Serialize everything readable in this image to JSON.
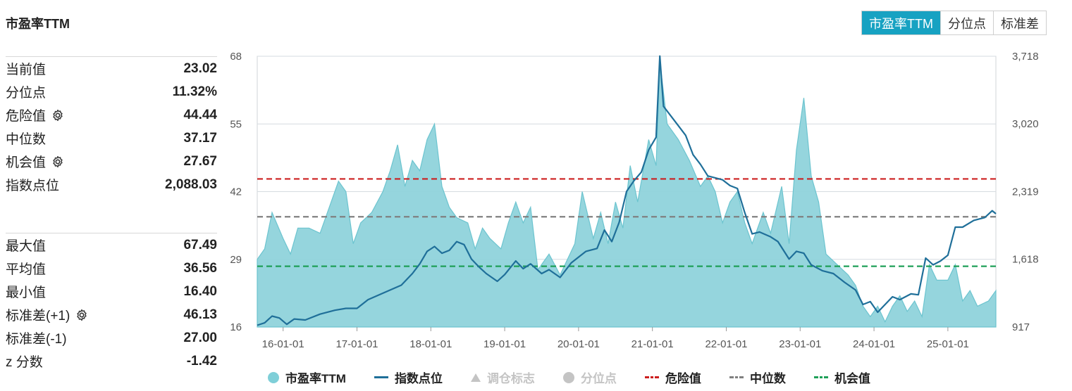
{
  "title": "市盈率TTM",
  "tabs": [
    {
      "label": "市盈率TTM",
      "active": true
    },
    {
      "label": "分位点",
      "active": false
    },
    {
      "label": "标准差",
      "active": false
    }
  ],
  "stats_top": [
    {
      "label": "当前值",
      "value": "23.02",
      "gear": false
    },
    {
      "label": "分位点",
      "value": "11.32%",
      "gear": false
    },
    {
      "label": "危险值",
      "value": "44.44",
      "gear": true
    },
    {
      "label": "中位数",
      "value": "37.17",
      "gear": false
    },
    {
      "label": "机会值",
      "value": "27.67",
      "gear": true
    },
    {
      "label": "指数点位",
      "value": "2,088.03",
      "gear": false
    }
  ],
  "stats_bottom": [
    {
      "label": "最大值",
      "value": "67.49",
      "gear": false
    },
    {
      "label": "平均值",
      "value": "36.56",
      "gear": false
    },
    {
      "label": "最小值",
      "value": "16.40",
      "gear": false
    },
    {
      "label": "标准差(+1)",
      "value": "46.13",
      "gear": true
    },
    {
      "label": "标准差(-1)",
      "value": "27.00",
      "gear": false
    },
    {
      "label": "z 分数",
      "value": "-1.42",
      "gear": false
    }
  ],
  "legend": [
    {
      "label": "市盈率TTM",
      "symbol": "dot",
      "color": "#7fcfd8",
      "active": true
    },
    {
      "label": "指数点位",
      "symbol": "line",
      "color": "#1f6f99",
      "active": true
    },
    {
      "label": "调仓标志",
      "symbol": "triangle",
      "color": "#c4c4c4",
      "active": false
    },
    {
      "label": "分位点",
      "symbol": "dot",
      "color": "#c4c4c4",
      "active": false
    },
    {
      "label": "危险值",
      "symbol": "dash",
      "color": "#cc1f1f",
      "active": true
    },
    {
      "label": "中位数",
      "symbol": "dash",
      "color": "#808080",
      "active": true
    },
    {
      "label": "机会值",
      "symbol": "dash",
      "color": "#1fa058",
      "active": true
    }
  ],
  "chart_data": {
    "type": "area",
    "x_ticks": [
      "16-01-01",
      "17-01-01",
      "18-01-01",
      "19-01-01",
      "20-01-01",
      "21-01-01",
      "22-01-01",
      "23-01-01",
      "24-01-01",
      "25-01-01"
    ],
    "x_range_years": [
      2015.65,
      2025.65
    ],
    "y_left": {
      "ticks": [
        "16",
        "29",
        "42",
        "55",
        "68"
      ],
      "range": [
        16,
        68
      ]
    },
    "y_right": {
      "ticks": [
        "917",
        "1,618",
        "2,319",
        "3,020",
        "3,718"
      ],
      "range": [
        917,
        3718
      ]
    },
    "reference_lines": [
      {
        "name": "危险值",
        "value": 44.44,
        "color": "#cc1f1f"
      },
      {
        "name": "中位数",
        "value": 37.17,
        "color": "#808080"
      },
      {
        "name": "机会值",
        "value": 27.67,
        "color": "#1fa058"
      }
    ],
    "series": [
      {
        "name": "市盈率TTM",
        "axis": "left",
        "kind": "area",
        "color": "#8fd3db",
        "points": [
          [
            2015.65,
            29
          ],
          [
            2015.75,
            31
          ],
          [
            2015.85,
            38
          ],
          [
            2016.0,
            33
          ],
          [
            2016.1,
            30
          ],
          [
            2016.2,
            35
          ],
          [
            2016.35,
            35
          ],
          [
            2016.5,
            34
          ],
          [
            2016.6,
            38
          ],
          [
            2016.75,
            44
          ],
          [
            2016.85,
            42
          ],
          [
            2016.95,
            32
          ],
          [
            2017.05,
            36
          ],
          [
            2017.2,
            38
          ],
          [
            2017.35,
            42
          ],
          [
            2017.45,
            46
          ],
          [
            2017.55,
            51
          ],
          [
            2017.65,
            43
          ],
          [
            2017.75,
            48
          ],
          [
            2017.85,
            46
          ],
          [
            2017.95,
            52
          ],
          [
            2018.05,
            55
          ],
          [
            2018.15,
            43
          ],
          [
            2018.25,
            39
          ],
          [
            2018.35,
            37
          ],
          [
            2018.5,
            36
          ],
          [
            2018.6,
            31
          ],
          [
            2018.7,
            35
          ],
          [
            2018.8,
            33
          ],
          [
            2018.95,
            31
          ],
          [
            2019.05,
            36
          ],
          [
            2019.15,
            40
          ],
          [
            2019.25,
            36
          ],
          [
            2019.35,
            39
          ],
          [
            2019.45,
            27
          ],
          [
            2019.6,
            30
          ],
          [
            2019.75,
            26
          ],
          [
            2019.95,
            32
          ],
          [
            2020.05,
            42
          ],
          [
            2020.2,
            33
          ],
          [
            2020.3,
            38
          ],
          [
            2020.4,
            32
          ],
          [
            2020.5,
            40
          ],
          [
            2020.6,
            35
          ],
          [
            2020.7,
            47
          ],
          [
            2020.8,
            40
          ],
          [
            2020.95,
            52
          ],
          [
            2021.05,
            47
          ],
          [
            2021.1,
            67
          ],
          [
            2021.2,
            55
          ],
          [
            2021.35,
            52
          ],
          [
            2021.5,
            48
          ],
          [
            2021.65,
            43
          ],
          [
            2021.75,
            45
          ],
          [
            2021.85,
            42
          ],
          [
            2021.95,
            36
          ],
          [
            2022.05,
            40
          ],
          [
            2022.15,
            42
          ],
          [
            2022.25,
            36
          ],
          [
            2022.35,
            32
          ],
          [
            2022.5,
            38
          ],
          [
            2022.6,
            34
          ],
          [
            2022.75,
            43
          ],
          [
            2022.85,
            32
          ],
          [
            2022.95,
            50
          ],
          [
            2023.05,
            60
          ],
          [
            2023.15,
            45
          ],
          [
            2023.25,
            40
          ],
          [
            2023.35,
            30
          ],
          [
            2023.5,
            28
          ],
          [
            2023.65,
            26
          ],
          [
            2023.75,
            24
          ],
          [
            2023.85,
            20
          ],
          [
            2023.95,
            18
          ],
          [
            2024.05,
            20
          ],
          [
            2024.15,
            17
          ],
          [
            2024.25,
            20
          ],
          [
            2024.35,
            22
          ],
          [
            2024.45,
            19
          ],
          [
            2024.55,
            21
          ],
          [
            2024.65,
            18
          ],
          [
            2024.75,
            28
          ],
          [
            2024.85,
            25
          ],
          [
            2025.0,
            25
          ],
          [
            2025.1,
            28
          ],
          [
            2025.2,
            21
          ],
          [
            2025.3,
            23
          ],
          [
            2025.4,
            20
          ],
          [
            2025.55,
            21
          ],
          [
            2025.65,
            23
          ]
        ]
      },
      {
        "name": "指数点位",
        "axis": "right",
        "kind": "line",
        "color": "#1f6f99",
        "points": [
          [
            2015.65,
            935
          ],
          [
            2015.75,
            960
          ],
          [
            2015.85,
            1030
          ],
          [
            2015.95,
            1010
          ],
          [
            2016.05,
            945
          ],
          [
            2016.15,
            1000
          ],
          [
            2016.3,
            990
          ],
          [
            2016.5,
            1050
          ],
          [
            2016.7,
            1090
          ],
          [
            2016.85,
            1110
          ],
          [
            2017.0,
            1110
          ],
          [
            2017.15,
            1200
          ],
          [
            2017.3,
            1250
          ],
          [
            2017.45,
            1300
          ],
          [
            2017.6,
            1350
          ],
          [
            2017.75,
            1470
          ],
          [
            2017.85,
            1570
          ],
          [
            2017.95,
            1700
          ],
          [
            2018.05,
            1750
          ],
          [
            2018.15,
            1680
          ],
          [
            2018.25,
            1710
          ],
          [
            2018.35,
            1800
          ],
          [
            2018.45,
            1770
          ],
          [
            2018.55,
            1620
          ],
          [
            2018.65,
            1540
          ],
          [
            2018.75,
            1470
          ],
          [
            2018.9,
            1390
          ],
          [
            2019.0,
            1460
          ],
          [
            2019.15,
            1600
          ],
          [
            2019.25,
            1520
          ],
          [
            2019.35,
            1570
          ],
          [
            2019.5,
            1470
          ],
          [
            2019.6,
            1510
          ],
          [
            2019.75,
            1430
          ],
          [
            2019.9,
            1580
          ],
          [
            2020.0,
            1640
          ],
          [
            2020.1,
            1700
          ],
          [
            2020.25,
            1730
          ],
          [
            2020.35,
            1920
          ],
          [
            2020.45,
            1800
          ],
          [
            2020.55,
            2000
          ],
          [
            2020.65,
            2320
          ],
          [
            2020.75,
            2430
          ],
          [
            2020.85,
            2520
          ],
          [
            2020.95,
            2750
          ],
          [
            2021.05,
            2880
          ],
          [
            2021.1,
            3720
          ],
          [
            2021.15,
            3200
          ],
          [
            2021.25,
            3100
          ],
          [
            2021.35,
            3000
          ],
          [
            2021.45,
            2900
          ],
          [
            2021.55,
            2700
          ],
          [
            2021.65,
            2600
          ],
          [
            2021.75,
            2480
          ],
          [
            2021.85,
            2460
          ],
          [
            2021.95,
            2440
          ],
          [
            2022.05,
            2380
          ],
          [
            2022.15,
            2350
          ],
          [
            2022.25,
            2100
          ],
          [
            2022.35,
            1880
          ],
          [
            2022.45,
            1900
          ],
          [
            2022.6,
            1850
          ],
          [
            2022.7,
            1800
          ],
          [
            2022.85,
            1620
          ],
          [
            2022.95,
            1700
          ],
          [
            2023.05,
            1680
          ],
          [
            2023.15,
            1560
          ],
          [
            2023.3,
            1500
          ],
          [
            2023.45,
            1470
          ],
          [
            2023.6,
            1380
          ],
          [
            2023.75,
            1300
          ],
          [
            2023.85,
            1150
          ],
          [
            2023.95,
            1180
          ],
          [
            2024.05,
            1070
          ],
          [
            2024.15,
            1150
          ],
          [
            2024.25,
            1230
          ],
          [
            2024.35,
            1200
          ],
          [
            2024.5,
            1260
          ],
          [
            2024.6,
            1250
          ],
          [
            2024.7,
            1630
          ],
          [
            2024.8,
            1560
          ],
          [
            2024.9,
            1600
          ],
          [
            2025.0,
            1660
          ],
          [
            2025.1,
            1950
          ],
          [
            2025.2,
            1950
          ],
          [
            2025.35,
            2020
          ],
          [
            2025.5,
            2050
          ],
          [
            2025.6,
            2120
          ],
          [
            2025.65,
            2088
          ]
        ]
      }
    ]
  }
}
